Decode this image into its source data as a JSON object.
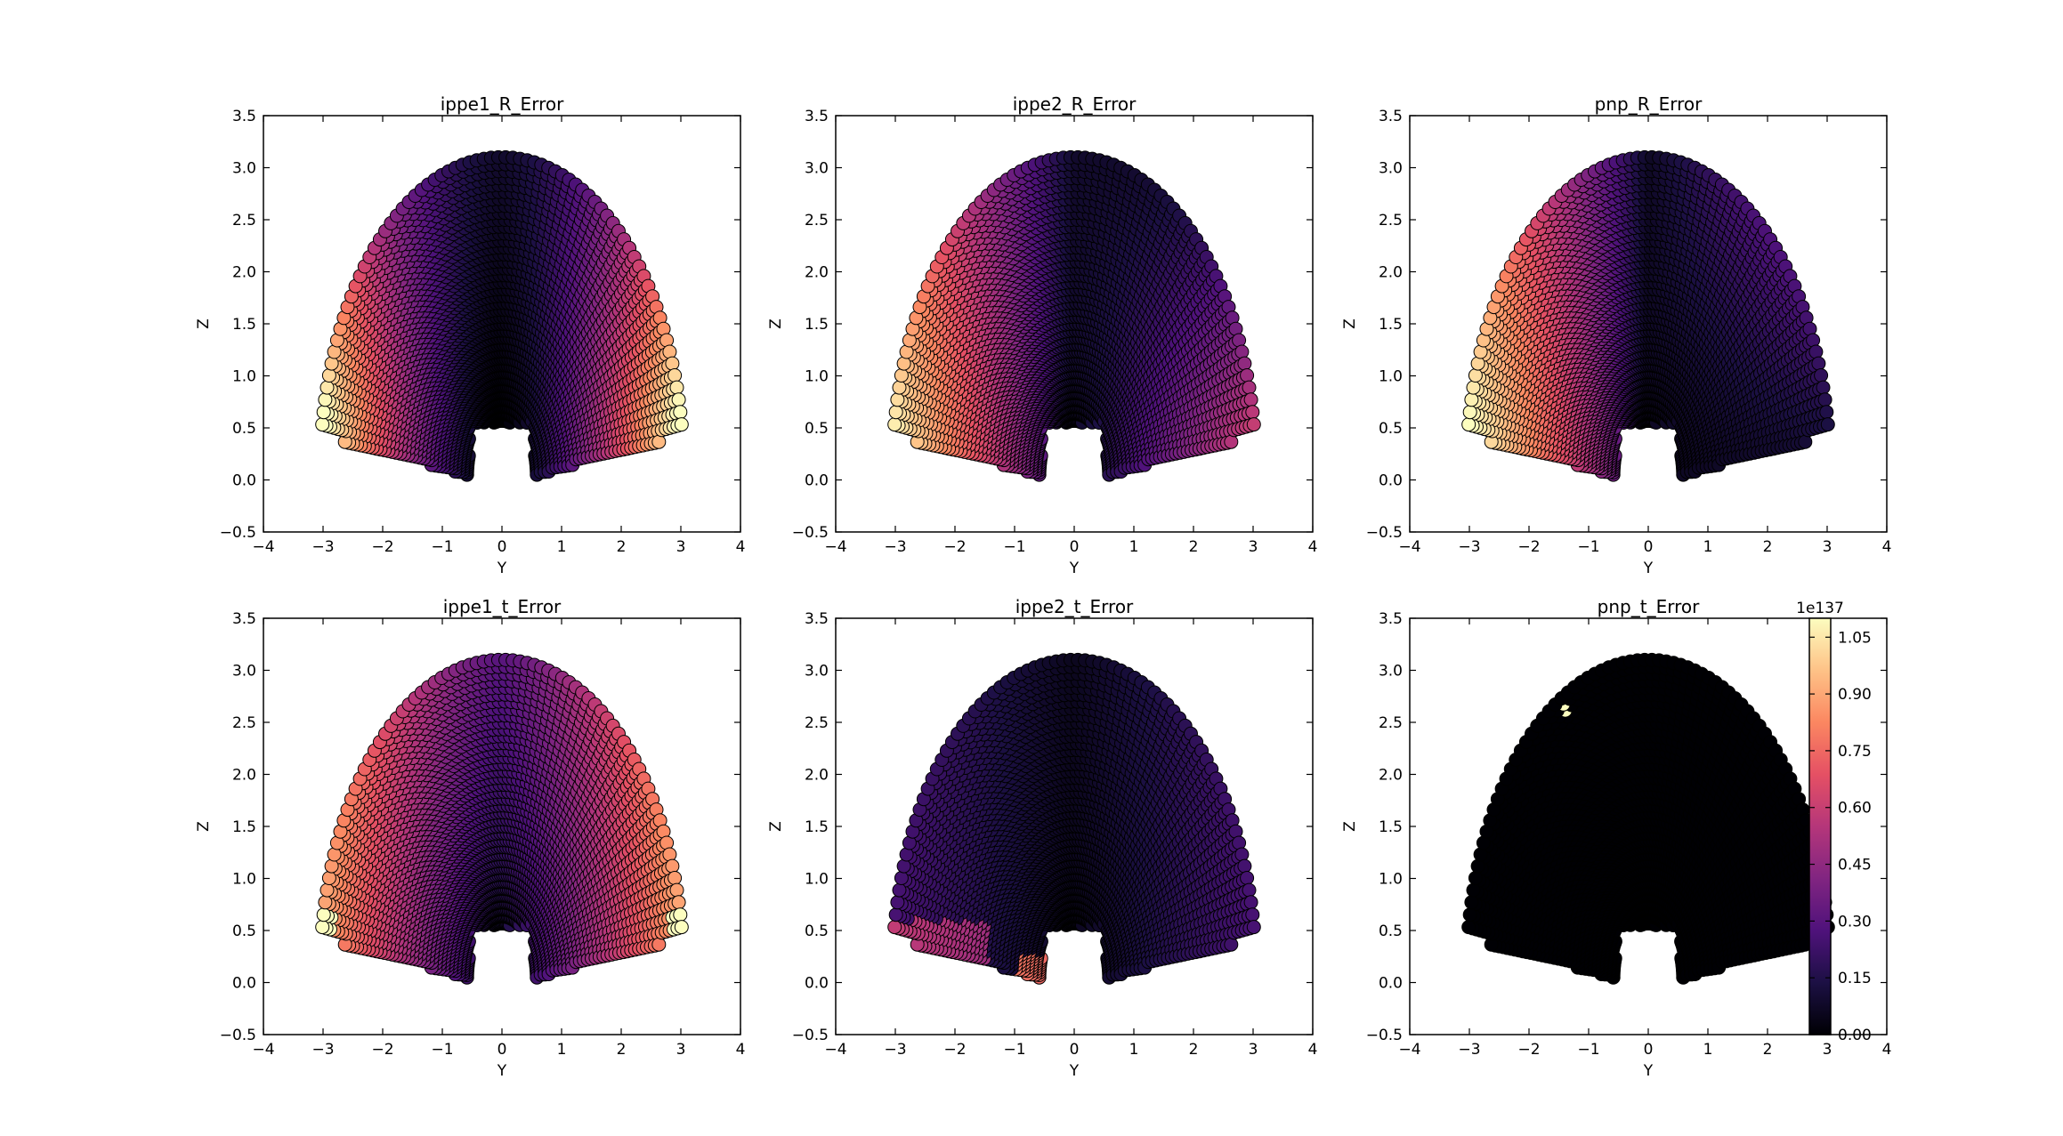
{
  "figure": {
    "background": "#ffffff",
    "axes_frame_color": "#000000"
  },
  "colormap": {
    "name": "magma",
    "stops": [
      "#000004",
      "#1c1044",
      "#4f127b",
      "#812581",
      "#b5367a",
      "#e55064",
      "#fb8761",
      "#fec287",
      "#fcfdbf"
    ]
  },
  "chart_data": [
    {
      "type": "scatter",
      "title": "ippe1_R_Error",
      "xlabel": "Y",
      "ylabel": "Z",
      "xlim": [
        -4,
        4
      ],
      "ylim": [
        -0.5,
        3.5
      ],
      "xticks": [
        "−4",
        "−3",
        "−2",
        "−1",
        "0",
        "1",
        "2",
        "3",
        "4"
      ],
      "yticks": [
        "−0.5",
        "0.0",
        "0.5",
        "1.0",
        "1.5",
        "2.0",
        "2.5",
        "3.0",
        "3.5"
      ],
      "grid": false,
      "pattern": "edges-high",
      "color_range": [
        0.0,
        1.0
      ],
      "points_note": "dome of markers spanning Y -3 to 3, Z 0.05 to 3.05"
    },
    {
      "type": "scatter",
      "title": "ippe2_R_Error",
      "xlabel": "Y",
      "ylabel": "Z",
      "xlim": [
        -4,
        4
      ],
      "ylim": [
        -0.5,
        3.5
      ],
      "xticks": [
        "−4",
        "−3",
        "−2",
        "−1",
        "0",
        "1",
        "2",
        "3",
        "4"
      ],
      "yticks": [
        "−0.5",
        "0.0",
        "0.5",
        "1.0",
        "1.5",
        "2.0",
        "2.5",
        "3.0",
        "3.5"
      ],
      "grid": false,
      "pattern": "bottom-left-high",
      "color_range": [
        0.0,
        1.0
      ]
    },
    {
      "type": "scatter",
      "title": "pnp_R_Error",
      "xlabel": "Y",
      "ylabel": "Z",
      "xlim": [
        -4,
        4
      ],
      "ylim": [
        -0.5,
        3.5
      ],
      "xticks": [
        "−4",
        "−3",
        "−2",
        "−1",
        "0",
        "1",
        "2",
        "3",
        "4"
      ],
      "yticks": [
        "−0.5",
        "0.0",
        "0.5",
        "1.0",
        "1.5",
        "2.0",
        "2.5",
        "3.0",
        "3.5"
      ],
      "grid": false,
      "pattern": "left-high",
      "color_range": [
        0.0,
        1.0
      ]
    },
    {
      "type": "scatter",
      "title": "ippe1_t_Error",
      "xlabel": "Y",
      "ylabel": "Z",
      "xlim": [
        -4,
        4
      ],
      "ylim": [
        -0.5,
        3.5
      ],
      "xticks": [
        "−4",
        "−3",
        "−2",
        "−1",
        "0",
        "1",
        "2",
        "3",
        "4"
      ],
      "yticks": [
        "−0.5",
        "0.0",
        "0.5",
        "1.0",
        "1.5",
        "2.0",
        "2.5",
        "3.0",
        "3.5"
      ],
      "grid": false,
      "pattern": "edges-medium",
      "color_range": [
        0.0,
        1.0
      ]
    },
    {
      "type": "scatter",
      "title": "ippe2_t_Error",
      "xlabel": "Y",
      "ylabel": "Z",
      "xlim": [
        -4,
        4
      ],
      "ylim": [
        -0.5,
        3.5
      ],
      "xticks": [
        "−4",
        "−3",
        "−2",
        "−1",
        "0",
        "1",
        "2",
        "3",
        "4"
      ],
      "yticks": [
        "−0.5",
        "0.0",
        "0.5",
        "1.0",
        "1.5",
        "2.0",
        "2.5",
        "3.0",
        "3.5"
      ],
      "grid": false,
      "pattern": "low-with-bottom-spots",
      "color_range": [
        0.0,
        1.0
      ]
    },
    {
      "type": "scatter",
      "title": "pnp_t_Error",
      "xlabel": "Y",
      "ylabel": "Z",
      "xlim": [
        -4,
        4
      ],
      "ylim": [
        -0.5,
        3.5
      ],
      "xticks": [
        "−4",
        "−3",
        "−2",
        "−1",
        "0",
        "1",
        "2",
        "3",
        "4"
      ],
      "yticks": [
        "−0.5",
        "0.0",
        "0.5",
        "1.0",
        "1.5",
        "2.0",
        "2.5",
        "3.0",
        "3.5"
      ],
      "grid": false,
      "pattern": "all-zero-with-one-outlier",
      "outlier": {
        "y": -1.4,
        "z": 2.65
      },
      "color_range": [
        0.0,
        1.1
      ]
    }
  ],
  "colorbar": {
    "offset_label": "1e137",
    "ticks": [
      "0.00",
      "0.15",
      "0.30",
      "0.45",
      "0.60",
      "0.75",
      "0.90",
      "1.05"
    ],
    "tick_values": [
      0.0,
      0.15,
      0.3,
      0.45,
      0.6,
      0.75,
      0.9,
      1.05
    ],
    "range": [
      0.0,
      1.1
    ]
  }
}
